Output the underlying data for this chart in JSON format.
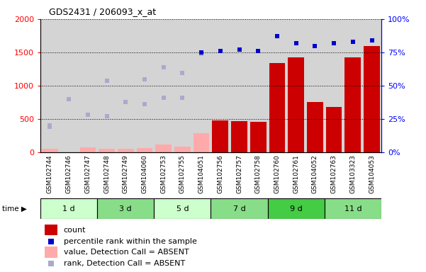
{
  "title": "GDS2431 / 206093_x_at",
  "samples": [
    "GSM102744",
    "GSM102746",
    "GSM102747",
    "GSM102748",
    "GSM102749",
    "GSM104060",
    "GSM102753",
    "GSM102755",
    "GSM104051",
    "GSM102756",
    "GSM102757",
    "GSM102758",
    "GSM102760",
    "GSM102761",
    "GSM104052",
    "GSM102763",
    "GSM103323",
    "GSM104053"
  ],
  "time_groups": [
    {
      "label": "1 d",
      "start": 0,
      "end": 3
    },
    {
      "label": "3 d",
      "start": 3,
      "end": 6
    },
    {
      "label": "5 d",
      "start": 6,
      "end": 9
    },
    {
      "label": "7 d",
      "start": 9,
      "end": 12
    },
    {
      "label": "9 d",
      "start": 12,
      "end": 15
    },
    {
      "label": "11 d",
      "start": 15,
      "end": 18
    }
  ],
  "group_colors": [
    "#ccffcc",
    "#88dd88",
    "#ccffcc",
    "#88dd88",
    "#44cc44",
    "#88dd88"
  ],
  "count_values": [
    50,
    0,
    80,
    0,
    0,
    0,
    0,
    0,
    0,
    480,
    470,
    460,
    1340,
    1430,
    760,
    680,
    1420,
    1600
  ],
  "count_absent": [
    true,
    false,
    true,
    true,
    true,
    true,
    true,
    true,
    false,
    false,
    false,
    false,
    false,
    false,
    false,
    false,
    false,
    false
  ],
  "percentile_values": [
    20,
    40,
    28,
    27,
    38,
    36,
    41,
    41,
    75,
    76,
    77,
    76,
    87,
    82,
    80,
    82,
    83,
    84
  ],
  "percentile_absent": [
    true,
    true,
    true,
    true,
    true,
    true,
    true,
    true,
    false,
    false,
    false,
    false,
    false,
    false,
    false,
    false,
    false,
    false
  ],
  "rank_absent_values": [
    380,
    800,
    560,
    1070,
    760,
    1090,
    1280,
    1190,
    1480,
    null,
    null,
    null,
    null,
    null,
    null,
    null,
    null,
    null
  ],
  "value_absent_values": [
    null,
    null,
    null,
    50,
    50,
    65,
    120,
    90,
    290,
    null,
    null,
    null,
    null,
    null,
    null,
    null,
    null,
    null
  ],
  "ylim_left": [
    0,
    2000
  ],
  "ylim_right": [
    0,
    100
  ],
  "yticks_left": [
    0,
    500,
    1000,
    1500,
    2000
  ],
  "yticks_right": [
    0,
    25,
    50,
    75,
    100
  ],
  "bar_color_present": "#cc0000",
  "bar_color_absent": "#ffaaaa",
  "dot_color_present": "#0000cc",
  "dot_color_absent": "#aaaacc",
  "col_bg_color": "#d4d4d4",
  "legend_items": [
    {
      "color": "#cc0000",
      "type": "rect",
      "label": "count"
    },
    {
      "color": "#0000cc",
      "type": "square",
      "label": "percentile rank within the sample"
    },
    {
      "color": "#ffaaaa",
      "type": "rect",
      "label": "value, Detection Call = ABSENT"
    },
    {
      "color": "#aaaacc",
      "type": "square",
      "label": "rank, Detection Call = ABSENT"
    }
  ]
}
